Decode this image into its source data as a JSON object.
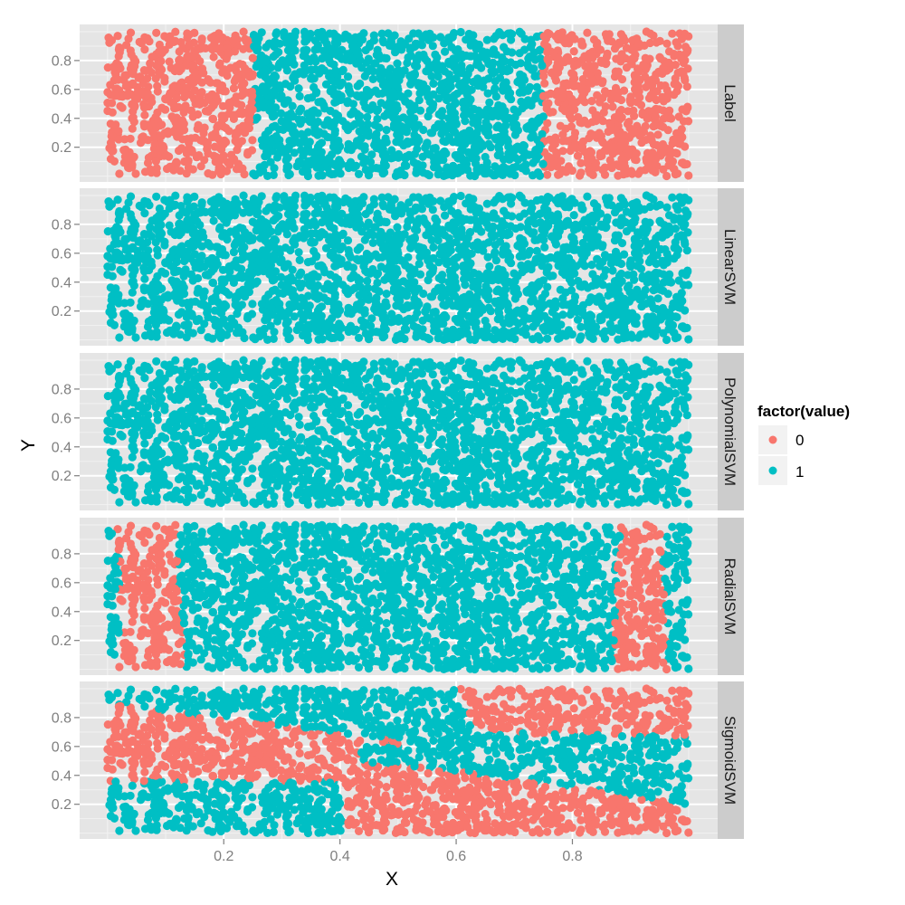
{
  "chart_data": {
    "type": "scatter",
    "title": "",
    "xlabel": "X",
    "ylabel": "Y",
    "xlim": [
      -0.048,
      1.05
    ],
    "ylim": [
      -0.04,
      1.05
    ],
    "x_ticks": [
      0.2,
      0.4,
      0.6,
      0.8
    ],
    "x_tick_labels": [
      "0.2",
      "0.4",
      "0.6",
      "0.8"
    ],
    "y_ticks": [
      0.2,
      0.4,
      0.6,
      0.8
    ],
    "y_tick_labels": [
      "0.2",
      "0.4",
      "0.6",
      "0.8"
    ],
    "grid": true,
    "facet_by": "model",
    "facets": [
      {
        "label": "Label",
        "description": "value 0 for x<0.25 or x>0.75, else 1",
        "red_regions": [
          [
            [
              -0.1,
              -0.1
            ],
            [
              0.25,
              -0.1
            ],
            [
              0.25,
              1.1
            ],
            [
              -0.1,
              1.1
            ]
          ],
          [
            [
              0.75,
              -0.1
            ],
            [
              1.1,
              -0.1
            ],
            [
              1.1,
              1.1
            ],
            [
              0.75,
              1.1
            ]
          ]
        ]
      },
      {
        "label": "LinearSVM",
        "description": "all points predicted 1",
        "red_regions": []
      },
      {
        "label": "PolynomialSVM",
        "description": "all points predicted 1",
        "red_regions": []
      },
      {
        "label": "RadialSVM",
        "description": "value 0 in two vertical bands near x≈0.02–0.13 and x≈0.87–0.96",
        "red_regions": [
          [
            [
              0.015,
              1.1
            ],
            [
              0.12,
              1.1
            ],
            [
              0.12,
              0.55
            ],
            [
              0.135,
              0.2
            ],
            [
              0.135,
              -0.1
            ],
            [
              0.02,
              -0.1
            ],
            [
              0.02,
              0.75
            ]
          ],
          [
            [
              0.885,
              1.1
            ],
            [
              0.965,
              1.1
            ],
            [
              0.955,
              0.8
            ],
            [
              0.96,
              0.3
            ],
            [
              0.965,
              -0.1
            ],
            [
              0.87,
              -0.1
            ],
            [
              0.875,
              0.55
            ]
          ]
        ]
      },
      {
        "label": "SigmoidSVM",
        "description": "diagonal bands of 0 and 1",
        "red_regions": [
          [
            [
              -0.1,
              0.95
            ],
            [
              0.35,
              0.72
            ],
            [
              0.58,
              0.6
            ],
            [
              0.44,
              0.62
            ],
            [
              0.43,
              0.5
            ],
            [
              0.6,
              0.43
            ],
            [
              1.1,
              0.14
            ],
            [
              1.1,
              -0.1
            ],
            [
              0.41,
              -0.1
            ],
            [
              0.41,
              0.36
            ],
            [
              -0.1,
              0.36
            ]
          ],
          [
            [
              0.58,
              1.1
            ],
            [
              0.6,
              0.97
            ],
            [
              0.64,
              0.72
            ],
            [
              0.72,
              0.69
            ],
            [
              1.1,
              0.66
            ],
            [
              1.1,
              1.1
            ]
          ]
        ]
      }
    ],
    "points_per_panel": 2400,
    "series": [
      {
        "name": "0",
        "color": "#F8766D"
      },
      {
        "name": "1",
        "color": "#00BFC4"
      }
    ],
    "legend": {
      "title": "factor(value)",
      "position": "right",
      "entries": [
        "0",
        "1"
      ]
    }
  },
  "colors": {
    "panel_bg": "#E5E5E5",
    "grid_major": "#FFFFFF",
    "grid_minor": "#F2F2F2",
    "strip_bg": "#CCCCCC",
    "legend_key_bg": "#F2F2F2",
    "red": "#F8766D",
    "cyan": "#00BFC4"
  }
}
